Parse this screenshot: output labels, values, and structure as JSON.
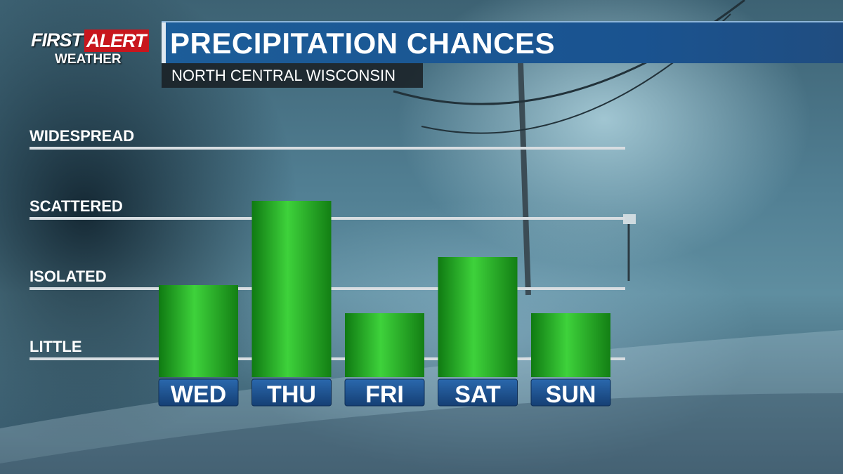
{
  "brand": {
    "logo_first": "FIRST",
    "logo_alert": "ALERT",
    "logo_weather": "WEATHER"
  },
  "header": {
    "title": "PRECIPITATION CHANCES",
    "subtitle": "NORTH CENTRAL WISCONSIN"
  },
  "colors": {
    "bar": "#22b422",
    "title_bar": "#1c5d99",
    "day_tab": "#1b4f8c",
    "alert_red": "#c8161d"
  },
  "chart_data": {
    "type": "bar",
    "title": "PRECIPITATION CHANCES",
    "subtitle": "NORTH CENTRAL WISCONSIN",
    "categories": [
      "WED",
      "THU",
      "FRI",
      "SAT",
      "SUN"
    ],
    "values": [
      0.8,
      2.0,
      0.4,
      1.2,
      0.4
    ],
    "yticks": [
      {
        "value": 0,
        "label": "LITTLE"
      },
      {
        "value": 1,
        "label": "ISOLATED"
      },
      {
        "value": 2,
        "label": "SCATTERED"
      },
      {
        "value": 3,
        "label": "WIDESPREAD"
      }
    ],
    "ylim": [
      0,
      3
    ],
    "grid": true,
    "legend": "none"
  }
}
